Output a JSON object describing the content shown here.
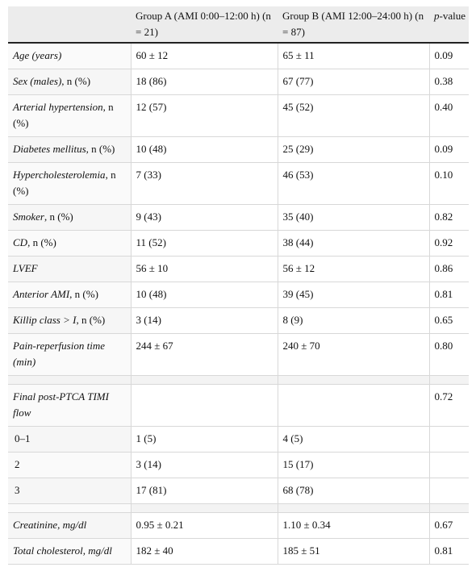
{
  "header": {
    "col1": "",
    "col2": "Group A (AMI 0:00–12:00 h) (n = 21)",
    "col3": "Group B (AMI 12:00–24:00 h) (n = 87)",
    "col4_italic": "p",
    "col4_rest": "-value"
  },
  "rows": [
    {
      "label": "Age (years)",
      "label_rest": "",
      "a": "60 ± 12",
      "b": "65 ± 11",
      "p": "0.09"
    },
    {
      "label": "Sex (males)",
      "label_rest": ", n (%)",
      "a": "18 (86)",
      "b": "67 (77)",
      "p": "0.38"
    },
    {
      "label": "Arterial hypertension",
      "label_rest": ", n (%)",
      "a": "12 (57)",
      "b": "45 (52)",
      "p": "0.40"
    },
    {
      "label": "Diabetes mellitus",
      "label_rest": ", n (%)",
      "a": "10 (48)",
      "b": "25 (29)",
      "p": "0.09"
    },
    {
      "label": "Hypercholesterolemia",
      "label_rest": ", n (%)",
      "a": "7 (33)",
      "b": "46 (53)",
      "p": "0.10"
    },
    {
      "label": "Smoker",
      "label_rest": ", n (%)",
      "a": "9 (43)",
      "b": "35 (40)",
      "p": "0.82"
    },
    {
      "label": "CD",
      "label_rest": ", n (%)",
      "a": "11 (52)",
      "b": "38 (44)",
      "p": "0.92"
    },
    {
      "label": "LVEF",
      "label_rest": "",
      "a": "56 ± 10",
      "b": "56 ± 12",
      "p": "0.86"
    },
    {
      "label": "Anterior AMI",
      "label_rest": ", n (%)",
      "a": "10 (48)",
      "b": "39 (45)",
      "p": "0.81"
    },
    {
      "label": "Killip class > I",
      "label_rest": ", n (%)",
      "a": "3 (14)",
      "b": "8 (9)",
      "p": "0.65"
    },
    {
      "label": "Pain-reperfusion time (min)",
      "label_rest": "",
      "a": "244 ± 67",
      "b": "240 ± 70",
      "p": "0.80"
    }
  ],
  "timi": {
    "label": "Final post-PTCA TIMI flow",
    "p": "0.72",
    "subrows": [
      {
        "label": "0–1",
        "a": "1 (5)",
        "b": "4 (5)"
      },
      {
        "label": "2",
        "a": "3 (14)",
        "b": "15 (17)"
      },
      {
        "label": "3",
        "a": "17 (81)",
        "b": "68 (78)"
      }
    ]
  },
  "lab_rows": [
    {
      "label": "Creatinine, mg/dl",
      "a": "0.95 ± 0.21",
      "b": "1.10 ± 0.34",
      "p": "0.67"
    },
    {
      "label": "Total cholesterol, mg/dl",
      "a": "182 ± 40",
      "b": "185 ± 51",
      "p": "0.81"
    }
  ]
}
